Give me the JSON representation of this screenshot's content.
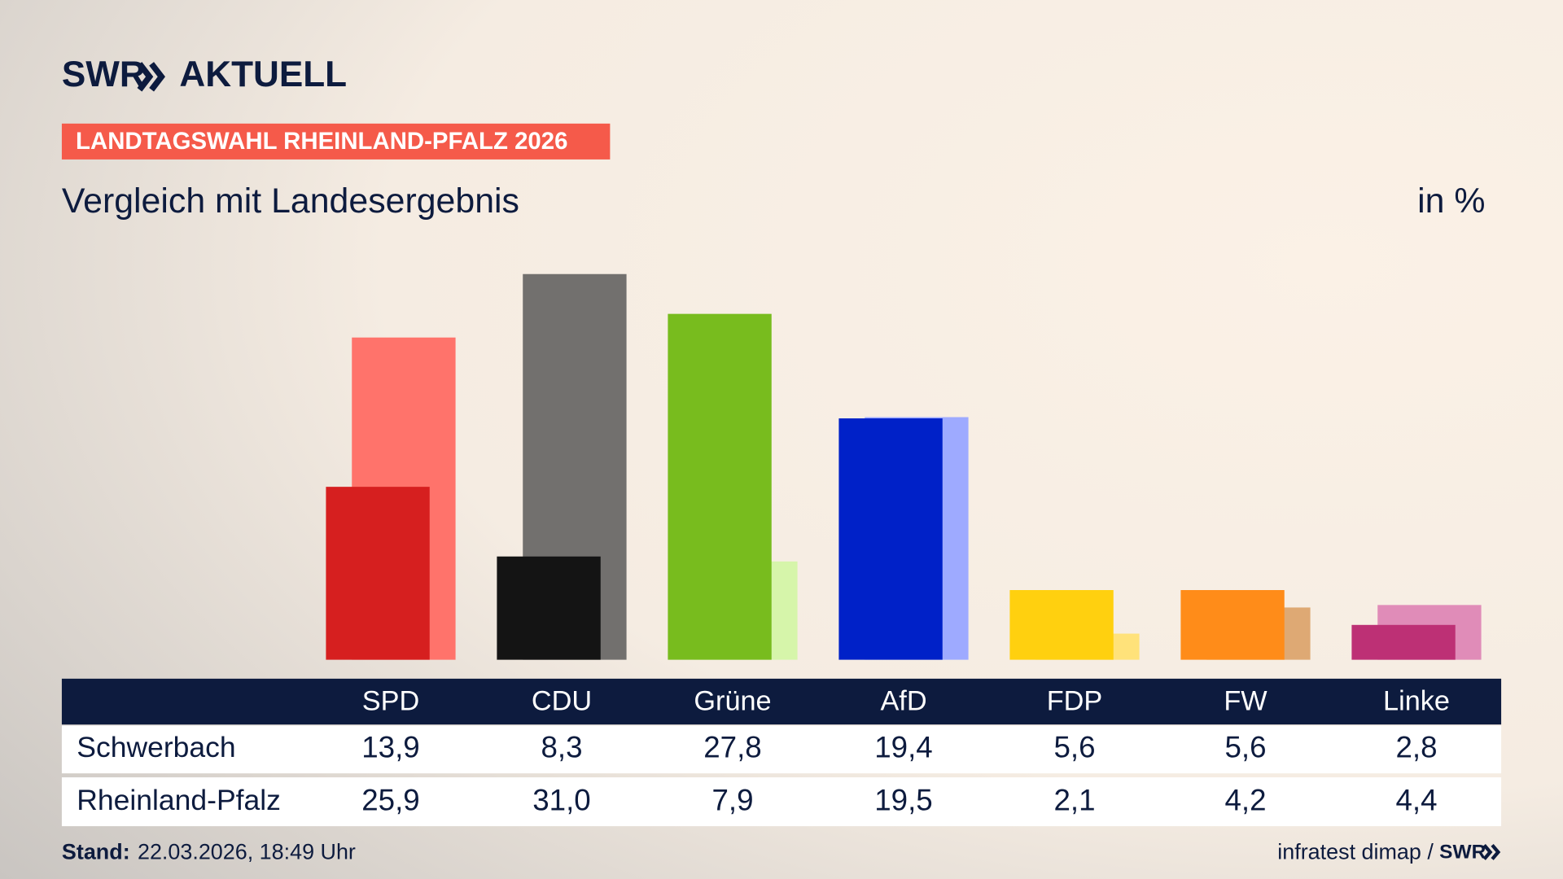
{
  "logo": {
    "brand": "SWR",
    "product": "AKTUELL"
  },
  "banner": "LANDTAGSWAHL RHEINLAND-PFALZ 2026",
  "chart_data": {
    "type": "bar",
    "title": "Vergleich mit Landesergebnis",
    "unit": "in %",
    "categories": [
      "SPD",
      "CDU",
      "Grüne",
      "AfD",
      "FDP",
      "FW",
      "Linke"
    ],
    "series": [
      {
        "name": "Schwerbach",
        "colors": [
          "#d61f1f",
          "#141414",
          "#78bc1e",
          "#0021c8",
          "#ffd00f",
          "#ff8c19",
          "#bd3075"
        ],
        "values": [
          13.9,
          8.3,
          27.8,
          19.4,
          5.6,
          5.6,
          2.8
        ],
        "value_labels": [
          "13,9",
          "8,3",
          "27,8",
          "19,4",
          "5,6",
          "5,6",
          "2,8"
        ]
      },
      {
        "name": "Rheinland-Pfalz",
        "colors": [
          "#ff736b",
          "#72706e",
          "#d6f5aa",
          "#9eaaff",
          "#ffe27a",
          "#dea974",
          "#e08cb8"
        ],
        "values": [
          25.9,
          31.0,
          7.9,
          19.5,
          2.1,
          4.2,
          4.4
        ],
        "value_labels": [
          "25,9",
          "31,0",
          "7,9",
          "19,5",
          "2,1",
          "4,2",
          "4,4"
        ]
      }
    ]
  },
  "footer": {
    "stand_label": "Stand:",
    "stand": "22.03.2026, 18:49 Uhr",
    "source": "infratest dimap /",
    "brand": "SWR"
  }
}
